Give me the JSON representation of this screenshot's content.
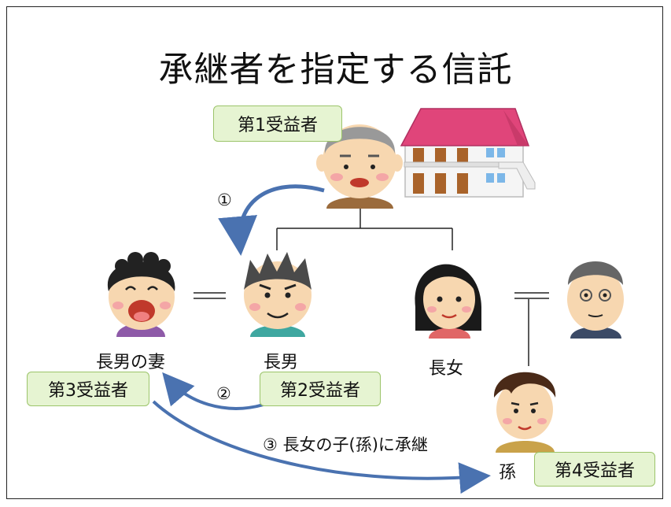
{
  "title": "承継者を指定する信託",
  "people": {
    "wife_of_eldest_son": "長男の妻",
    "eldest_son": "長男",
    "eldest_daughter": "長女",
    "grandchild": "孫"
  },
  "beneficiaries": {
    "first": "第1受益者",
    "second": "第2受益者",
    "third": "第3受益者",
    "fourth": "第4受益者"
  },
  "steps": {
    "step1": "①",
    "step2": "②",
    "step3": "③ 長女の子(孫)に承継"
  },
  "colors": {
    "badge_fill": "#e6f4d2",
    "badge_border": "#9cc46a",
    "arrow": "#4a72b0",
    "roof": "#e0457a"
  }
}
